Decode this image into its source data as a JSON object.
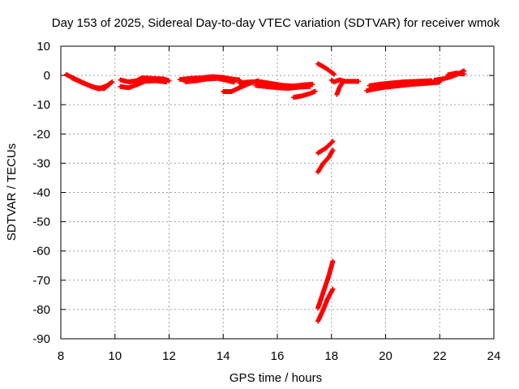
{
  "chart_data": {
    "type": "scatter",
    "title": "Day 153 of 2025, Sidereal Day-to-day VTEC variation (SDTVAR) for receiver wmok",
    "xlabel": "GPS time / hours",
    "ylabel": "SDTVAR / TECUs",
    "xlim": [
      8,
      24
    ],
    "ylim": [
      -90,
      10
    ],
    "x_ticks": [
      8,
      10,
      12,
      14,
      16,
      18,
      20,
      22,
      24
    ],
    "y_ticks": [
      10,
      0,
      -10,
      -20,
      -30,
      -40,
      -50,
      -60,
      -70,
      -80,
      -90
    ],
    "grid": true,
    "marker": "plus",
    "series": [
      {
        "name": "SDTVAR",
        "color": "#ff0000",
        "tracks": [
          [
            [
              8.2,
              0.3
            ],
            [
              8.6,
              -1.5
            ],
            [
              9.0,
              -3.2
            ],
            [
              9.4,
              -4.6
            ],
            [
              9.7,
              -3.5
            ],
            [
              9.9,
              -2.2
            ]
          ],
          [
            [
              8.4,
              -0.8
            ],
            [
              8.8,
              -2.5
            ],
            [
              9.2,
              -4.0
            ],
            [
              9.6,
              -4.5
            ],
            [
              9.8,
              -3.0
            ]
          ],
          [
            [
              10.2,
              -1.5
            ],
            [
              10.5,
              -2.2
            ],
            [
              10.8,
              -1.8
            ],
            [
              11.0,
              -0.8
            ],
            [
              11.4,
              -1.0
            ],
            [
              11.8,
              -1.2
            ],
            [
              12.0,
              -1.8
            ]
          ],
          [
            [
              10.2,
              -3.8
            ],
            [
              10.5,
              -4.2
            ],
            [
              10.8,
              -3.2
            ],
            [
              11.1,
              -2.0
            ],
            [
              11.5,
              -1.8
            ],
            [
              11.9,
              -2.2
            ]
          ],
          [
            [
              12.4,
              -1.4
            ],
            [
              12.8,
              -1.0
            ],
            [
              13.2,
              -0.8
            ],
            [
              13.6,
              -0.4
            ],
            [
              14.0,
              -0.7
            ],
            [
              14.3,
              -1.2
            ],
            [
              14.6,
              -1.5
            ]
          ],
          [
            [
              12.6,
              -2.2
            ],
            [
              13.0,
              -1.8
            ],
            [
              13.4,
              -1.2
            ],
            [
              13.8,
              -1.0
            ],
            [
              14.1,
              -1.6
            ],
            [
              14.4,
              -2.3
            ]
          ],
          [
            [
              14.0,
              -5.5
            ],
            [
              14.3,
              -5.5
            ],
            [
              14.6,
              -4.2
            ],
            [
              15.0,
              -2.6
            ],
            [
              15.3,
              -1.8
            ]
          ],
          [
            [
              14.6,
              -2.6
            ],
            [
              15.0,
              -2.2
            ],
            [
              15.4,
              -2.2
            ],
            [
              15.8,
              -2.8
            ],
            [
              16.2,
              -3.4
            ],
            [
              16.6,
              -3.6
            ],
            [
              17.0,
              -3.2
            ],
            [
              17.3,
              -3.0
            ]
          ],
          [
            [
              15.2,
              -3.4
            ],
            [
              15.6,
              -3.8
            ],
            [
              16.0,
              -4.2
            ],
            [
              16.4,
              -4.4
            ],
            [
              16.8,
              -4.0
            ],
            [
              17.2,
              -3.8
            ]
          ],
          [
            [
              16.6,
              -7.5
            ],
            [
              16.9,
              -7.0
            ],
            [
              17.2,
              -6.2
            ],
            [
              17.4,
              -5.4
            ]
          ],
          [
            [
              17.5,
              4.0
            ],
            [
              17.7,
              3.0
            ],
            [
              17.9,
              1.8
            ],
            [
              18.1,
              0.4
            ]
          ],
          [
            [
              18.0,
              -1.6
            ],
            [
              18.1,
              -2.2
            ],
            [
              18.3,
              -1.5
            ],
            [
              18.5,
              -2.0
            ],
            [
              18.8,
              -2.0
            ],
            [
              19.0,
              -2.0
            ]
          ],
          [
            [
              18.2,
              -6.5
            ],
            [
              18.3,
              -4.0
            ],
            [
              18.4,
              -2.5
            ]
          ],
          [
            [
              19.3,
              -5.2
            ],
            [
              19.6,
              -4.6
            ],
            [
              20.0,
              -4.0
            ],
            [
              20.5,
              -3.5
            ],
            [
              21.0,
              -3.0
            ],
            [
              21.5,
              -2.7
            ],
            [
              22.0,
              -2.3
            ]
          ],
          [
            [
              19.4,
              -3.5
            ],
            [
              19.8,
              -3.0
            ],
            [
              20.2,
              -2.6
            ],
            [
              20.7,
              -2.2
            ],
            [
              21.2,
              -2.0
            ],
            [
              21.7,
              -1.8
            ]
          ],
          [
            [
              21.8,
              -1.6
            ],
            [
              22.1,
              -1.2
            ],
            [
              22.4,
              -0.5
            ],
            [
              22.7,
              0.6
            ],
            [
              22.9,
              1.6
            ]
          ],
          [
            [
              22.3,
              0.2
            ],
            [
              22.6,
              0.8
            ],
            [
              22.9,
              0.5
            ]
          ],
          [
            [
              17.5,
              -26.5
            ],
            [
              17.8,
              -24.8
            ],
            [
              18.05,
              -22.5
            ]
          ],
          [
            [
              17.5,
              -33.0
            ],
            [
              17.7,
              -30.0
            ],
            [
              17.9,
              -28.0
            ],
            [
              18.05,
              -25.5
            ]
          ],
          [
            [
              17.5,
              -79.5
            ],
            [
              17.7,
              -74.0
            ],
            [
              17.9,
              -68.5
            ],
            [
              18.05,
              -63.5
            ]
          ],
          [
            [
              17.5,
              -84.0
            ],
            [
              17.7,
              -80.0
            ],
            [
              17.85,
              -76.5
            ],
            [
              18.05,
              -73.0
            ]
          ]
        ]
      }
    ]
  }
}
